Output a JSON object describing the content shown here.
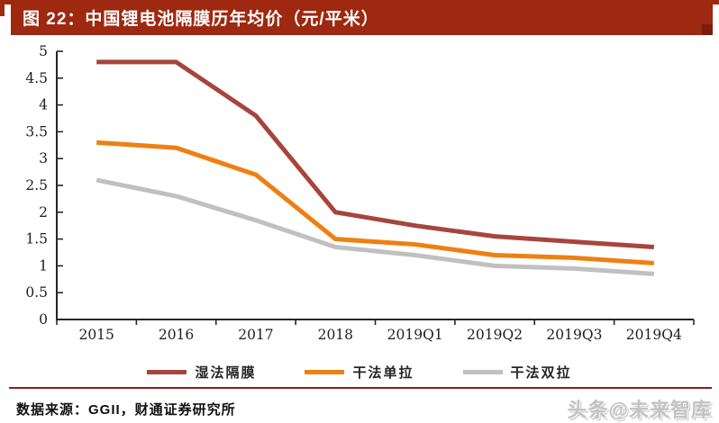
{
  "header": {
    "title": "图 22：中国锂电池隔膜历年均价（元/平米）",
    "bar_color": "#9E2810"
  },
  "chart_data": {
    "type": "line",
    "title": "中国锂电池隔膜历年均价（元/平米）",
    "categories": [
      "2015",
      "2016",
      "2017",
      "2018",
      "2019Q1",
      "2019Q2",
      "2019Q3",
      "2019Q4"
    ],
    "series": [
      {
        "name": "湿法隔膜",
        "color": "#A6453C",
        "values": [
          4.8,
          4.8,
          3.8,
          2.0,
          1.75,
          1.55,
          1.45,
          1.35
        ]
      },
      {
        "name": "干法单拉",
        "color": "#EE8012",
        "values": [
          3.3,
          3.2,
          2.7,
          1.5,
          1.4,
          1.2,
          1.15,
          1.05
        ]
      },
      {
        "name": "干法双拉",
        "color": "#C0C0C0",
        "values": [
          2.6,
          2.3,
          1.85,
          1.35,
          1.2,
          1.0,
          0.95,
          0.85
        ]
      }
    ],
    "xlabel": "",
    "ylabel": "",
    "ylim": [
      0,
      5
    ],
    "ytick_step": 0.5,
    "grid": false,
    "legend_position": "bottom"
  },
  "footer": {
    "source": "数据来源：GGII，财通证券研究所",
    "watermark": "头条@未来智库"
  }
}
